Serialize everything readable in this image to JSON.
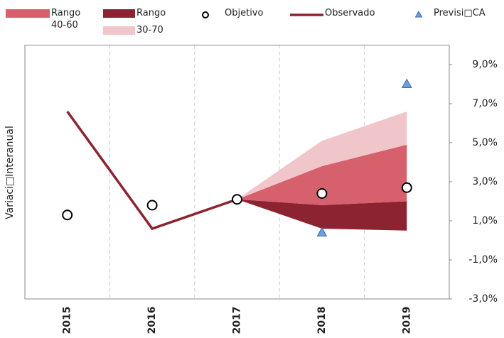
{
  "chart_data": {
    "type": "fan",
    "y_label": "Variaci□Interanual",
    "categories": [
      "2015",
      "2016",
      "2017",
      "2018",
      "2019"
    ],
    "ylim": [
      -3,
      10
    ],
    "yticks": [
      {
        "value": 9,
        "label": "9,0%"
      },
      {
        "value": 7,
        "label": "7,0%"
      },
      {
        "value": 5,
        "label": "5,0%"
      },
      {
        "value": 3,
        "label": "3,0%"
      },
      {
        "value": 1,
        "label": "1,0%"
      },
      {
        "value": -1,
        "label": "-1,0%"
      },
      {
        "value": -3,
        "label": "-3,0%"
      }
    ],
    "series": [
      {
        "name": "Rango 40-60",
        "type": "band",
        "color": "#d6616d",
        "low": [
          null,
          null,
          2.1,
          1.8,
          2.0
        ],
        "high": [
          null,
          null,
          2.1,
          3.8,
          4.9
        ]
      },
      {
        "name": "Rango",
        "type": "band",
        "color": "#8c2331",
        "low": [
          null,
          null,
          2.1,
          0.6,
          0.5
        ],
        "high": [
          null,
          null,
          2.1,
          1.8,
          2.0
        ]
      },
      {
        "name": "30-70",
        "type": "band",
        "color": "#f0c6cb",
        "low": [
          null,
          null,
          2.1,
          3.8,
          4.9
        ],
        "high": [
          null,
          null,
          2.1,
          5.1,
          6.6
        ]
      },
      {
        "name": "Observado",
        "type": "line",
        "color": "#8c2331",
        "values": [
          6.6,
          0.6,
          2.1,
          null,
          null
        ]
      },
      {
        "name": "Objetivo",
        "type": "circle",
        "color": "#000000",
        "values": [
          1.3,
          1.8,
          2.1,
          2.4,
          2.7
        ]
      },
      {
        "name": "Previsi□CA",
        "type": "triangle",
        "color": "#6f9fd8",
        "values": [
          null,
          null,
          null,
          0.4,
          8.0
        ]
      }
    ]
  }
}
